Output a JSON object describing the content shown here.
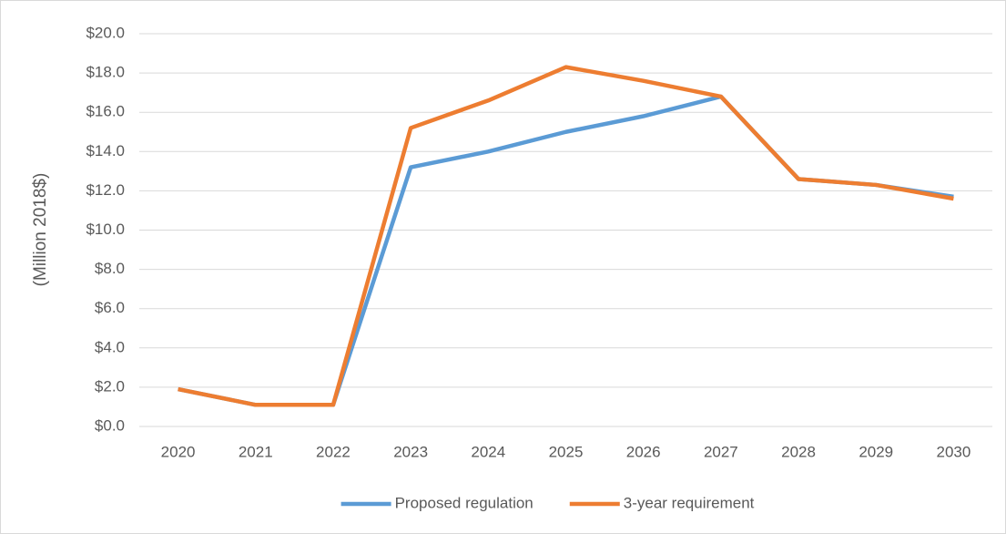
{
  "chart_data": {
    "type": "line",
    "y_label": "(Million 2018$)",
    "categories": [
      "2020",
      "2021",
      "2022",
      "2023",
      "2024",
      "2025",
      "2026",
      "2027",
      "2028",
      "2029",
      "2030"
    ],
    "series": [
      {
        "name": "Proposed regulation",
        "color": "#5b9bd5",
        "values": [
          1.9,
          1.1,
          1.1,
          13.2,
          14.0,
          15.0,
          15.8,
          16.8,
          12.6,
          12.3,
          11.7
        ]
      },
      {
        "name": "3-year requirement",
        "color": "#ed7d31",
        "values": [
          1.9,
          1.1,
          1.1,
          15.2,
          16.6,
          18.3,
          17.6,
          16.8,
          12.6,
          12.3,
          11.6
        ]
      }
    ],
    "ylim": [
      0,
      20
    ],
    "yticks": [
      {
        "value": 0,
        "label": "$0.0"
      },
      {
        "value": 2,
        "label": "$2.0"
      },
      {
        "value": 4,
        "label": "$4.0"
      },
      {
        "value": 6,
        "label": "$6.0"
      },
      {
        "value": 8,
        "label": "$8.0"
      },
      {
        "value": 10,
        "label": "$10.0"
      },
      {
        "value": 12,
        "label": "$12.0"
      },
      {
        "value": 14,
        "label": "$14.0"
      },
      {
        "value": 16,
        "label": "$16.0"
      },
      {
        "value": 18,
        "label": "$18.0"
      },
      {
        "value": 20,
        "label": "$20.0"
      }
    ],
    "grid": true,
    "legend": "bottom"
  }
}
